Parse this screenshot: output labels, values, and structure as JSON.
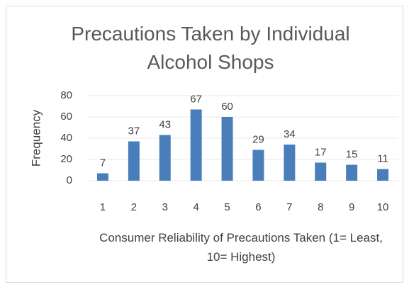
{
  "chart_data": {
    "type": "bar",
    "title": "Precautions Taken by Individual Alcohol Shops",
    "x_label": "Consumer Reliability of Precautions Taken (1= Least, 10= Highest)",
    "y_label": "Frequency",
    "categories": [
      "1",
      "2",
      "3",
      "4",
      "5",
      "6",
      "7",
      "8",
      "9",
      "10"
    ],
    "values": [
      7,
      37,
      43,
      67,
      60,
      29,
      34,
      17,
      15,
      11
    ],
    "color": "#4a7ebb",
    "ylim": [
      0,
      80
    ],
    "yticks": [
      0,
      20,
      40,
      60,
      80
    ],
    "grid": true
  }
}
